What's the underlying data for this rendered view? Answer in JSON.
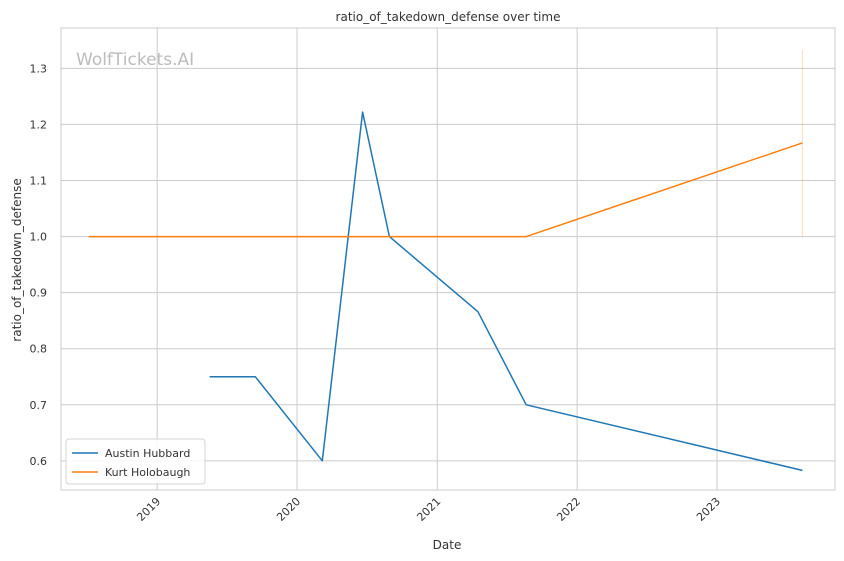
{
  "chart_data": {
    "type": "line",
    "title": "ratio_of_takedown_defense over time",
    "xlabel": "Date",
    "ylabel": "ratio_of_takedown_defense",
    "watermark": "WolfTickets.AI",
    "x_ticks": [
      "2019",
      "2020",
      "2021",
      "2022",
      "2023"
    ],
    "y_ticks": [
      "0.6",
      "0.7",
      "0.8",
      "0.9",
      "1.0",
      "1.1",
      "1.2",
      "1.3"
    ],
    "xlim": [
      "2018-04-25",
      "2023-11-05"
    ],
    "ylim": [
      0.548,
      1.372
    ],
    "grid": true,
    "legend_position": "lower-left",
    "series": [
      {
        "name": "Austin Hubbard",
        "color": "#1f77b4",
        "points": [
          [
            "2019-05-18",
            0.75
          ],
          [
            "2019-09-14",
            0.75
          ],
          [
            "2020-03-07",
            0.6
          ],
          [
            "2020-06-20",
            1.222
          ],
          [
            "2020-08-29",
            1.0
          ],
          [
            "2021-04-17",
            0.866
          ],
          [
            "2021-08-21",
            0.7
          ],
          [
            "2023-08-12",
            0.583
          ]
        ]
      },
      {
        "name": "Kurt Holobaugh",
        "color": "#ff7f0e",
        "points": [
          [
            "2018-07-06",
            1.0
          ],
          [
            "2021-08-21",
            1.0
          ],
          [
            "2023-08-12",
            1.167
          ]
        ],
        "error_band": {
          "date": "2023-08-12",
          "low": 1.0,
          "high": 1.333
        }
      }
    ]
  }
}
